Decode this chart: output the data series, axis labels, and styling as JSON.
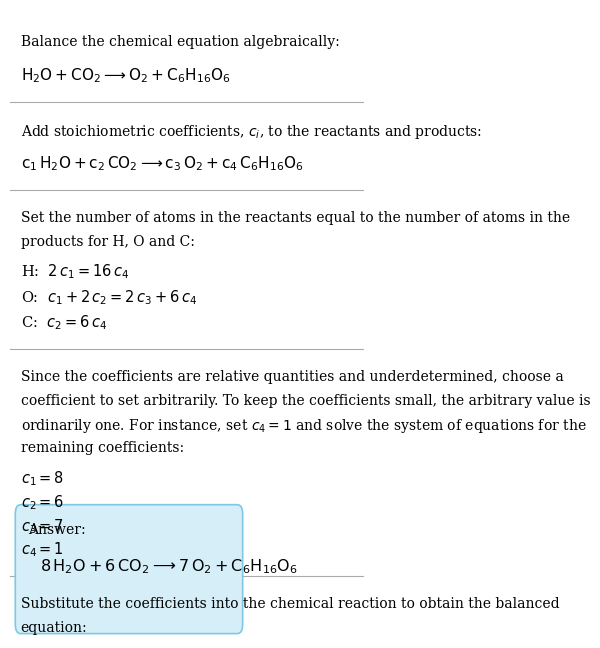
{
  "bg_color": "#ffffff",
  "text_color": "#000000",
  "answer_box_color": "#d6eef8",
  "answer_box_edge": "#7ec8e3",
  "fig_width": 5.28,
  "fig_height": 6.32,
  "line1_title": "Balance the chemical equation algebraically:",
  "line1_formula": "$\\mathregular{H_2O + CO_2 \\longrightarrow O_2 + C_6H_{16}O_6}$",
  "line2_title": "Add stoichiometric coefficients, $\\mathit{c_i}$, to the reactants and products:",
  "line2_formula": "$\\mathregular{c_1\\,H_2O + c_2\\,CO_2 \\longrightarrow c_3\\,O_2 + c_4\\,C_6H_{16}O_6}$",
  "line3_title1": "Set the number of atoms in the reactants equal to the number of atoms in the",
  "line3_title2": "products for H, O and C:",
  "eq_h": "H:  $2\\,c_1 = 16\\,c_4$",
  "eq_o": "O:  $c_1 + 2\\,c_2 = 2\\,c_3 + 6\\,c_4$",
  "eq_c": "C:  $c_2 = 6\\,c_4$",
  "line4_1": "Since the coefficients are relative quantities and underdetermined, choose a",
  "line4_2": "coefficient to set arbitrarily. To keep the coefficients small, the arbitrary value is",
  "line4_3": "ordinarily one. For instance, set $c_4 = 1$ and solve the system of equations for the",
  "line4_4": "remaining coefficients:",
  "sol1": "$c_1 = 8$",
  "sol2": "$c_2 = 6$",
  "sol3": "$c_3 = 7$",
  "sol4": "$c_4 = 1$",
  "line5_1": "Substitute the coefficients into the chemical reaction to obtain the balanced",
  "line5_2": "equation:",
  "answer_label": "Answer:",
  "answer_formula": "$8\\,\\mathregular{H_2O} + 6\\,\\mathregular{CO_2} \\longrightarrow 7\\,\\mathregular{O_2} + \\mathregular{C_6H_{16}O_6}$"
}
